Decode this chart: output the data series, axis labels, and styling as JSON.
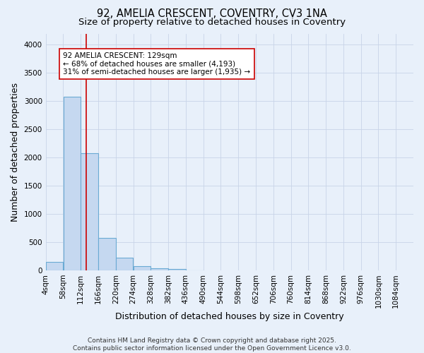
{
  "title_line1": "92, AMELIA CRESCENT, COVENTRY, CV3 1NA",
  "title_line2": "Size of property relative to detached houses in Coventry",
  "xlabel": "Distribution of detached houses by size in Coventry",
  "ylabel": "Number of detached properties",
  "bar_left_edges": [
    4,
    58,
    112,
    166,
    220,
    274,
    328,
    382,
    436,
    490,
    544,
    598,
    652,
    706,
    760,
    814,
    868,
    922,
    976,
    1030
  ],
  "bar_heights": [
    150,
    3080,
    2080,
    580,
    220,
    70,
    40,
    30,
    5,
    0,
    0,
    0,
    0,
    0,
    0,
    0,
    0,
    0,
    0,
    0
  ],
  "bin_width": 54,
  "bar_color": "#c5d8f0",
  "bar_edge_color": "#6aaad4",
  "background_color": "#e8f0fa",
  "grid_color": "#c8d4e8",
  "vline_x": 129,
  "vline_color": "#cc0000",
  "annotation_text": "92 AMELIA CRESCENT: 129sqm\n← 68% of detached houses are smaller (4,193)\n31% of semi-detached houses are larger (1,935) →",
  "annotation_box_color": "#ffffff",
  "annotation_box_edge": "#cc0000",
  "ylim": [
    0,
    4200
  ],
  "yticks": [
    0,
    500,
    1000,
    1500,
    2000,
    2500,
    3000,
    3500,
    4000
  ],
  "xtick_labels": [
    "4sqm",
    "58sqm",
    "112sqm",
    "166sqm",
    "220sqm",
    "274sqm",
    "328sqm",
    "382sqm",
    "436sqm",
    "490sqm",
    "544sqm",
    "598sqm",
    "652sqm",
    "706sqm",
    "760sqm",
    "814sqm",
    "868sqm",
    "922sqm",
    "976sqm",
    "1030sqm",
    "1084sqm"
  ],
  "footer_text": "Contains HM Land Registry data © Crown copyright and database right 2025.\nContains public sector information licensed under the Open Government Licence v3.0.",
  "title_fontsize": 10.5,
  "subtitle_fontsize": 9.5,
  "axis_label_fontsize": 9,
  "tick_fontsize": 7.5,
  "annotation_fontsize": 7.5,
  "footer_fontsize": 6.5
}
